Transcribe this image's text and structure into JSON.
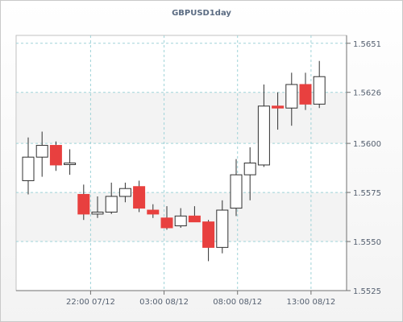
{
  "chart_data": {
    "type": "candlestick",
    "title": "GBPUSD1day",
    "y_axis_position": "right",
    "ylim": [
      1.5525,
      1.5655
    ],
    "yticks": [
      {
        "value": 1.5525,
        "label": "1.5525"
      },
      {
        "value": 1.555,
        "label": "1.5550"
      },
      {
        "value": 1.5575,
        "label": "1.5575"
      },
      {
        "value": 1.56,
        "label": "1.5600"
      },
      {
        "value": 1.5626,
        "label": "1.5626"
      },
      {
        "value": 1.5651,
        "label": "1.5651"
      }
    ],
    "xticks": [
      {
        "index": 4.5,
        "label": "22:00 07/12"
      },
      {
        "index": 9.8,
        "label": "03:00 08/12"
      },
      {
        "index": 15.1,
        "label": "08:00 08/12"
      },
      {
        "index": 20.4,
        "label": "13:00 08/12"
      }
    ],
    "grid": true,
    "colors": {
      "bullish": "#ffffff",
      "bearish": "#e8403f",
      "outline": "#303030",
      "grid": "#9fd3d8"
    },
    "candles": [
      {
        "open": 1.5581,
        "high": 1.5603,
        "low": 1.5574,
        "close": 1.5593
      },
      {
        "open": 1.5593,
        "high": 1.5606,
        "low": 1.5583,
        "close": 1.5599
      },
      {
        "open": 1.5599,
        "high": 1.5601,
        "low": 1.5586,
        "close": 1.5589
      },
      {
        "open": 1.559,
        "high": 1.5597,
        "low": 1.5584,
        "close": 1.559
      },
      {
        "open": 1.5574,
        "high": 1.5579,
        "low": 1.5561,
        "close": 1.5564
      },
      {
        "open": 1.5564,
        "high": 1.5573,
        "low": 1.5562,
        "close": 1.5565
      },
      {
        "open": 1.5565,
        "high": 1.558,
        "low": 1.5564,
        "close": 1.5573
      },
      {
        "open": 1.5573,
        "high": 1.558,
        "low": 1.557,
        "close": 1.5577
      },
      {
        "open": 1.5578,
        "high": 1.5581,
        "low": 1.5565,
        "close": 1.5567
      },
      {
        "open": 1.5566,
        "high": 1.5569,
        "low": 1.5562,
        "close": 1.5564
      },
      {
        "open": 1.5562,
        "high": 1.5568,
        "low": 1.5556,
        "close": 1.5557
      },
      {
        "open": 1.5558,
        "high": 1.5567,
        "low": 1.5557,
        "close": 1.5563
      },
      {
        "open": 1.5563,
        "high": 1.5568,
        "low": 1.556,
        "close": 1.556
      },
      {
        "open": 1.556,
        "high": 1.5561,
        "low": 1.554,
        "close": 1.5547
      },
      {
        "open": 1.5547,
        "high": 1.5571,
        "low": 1.5544,
        "close": 1.5566
      },
      {
        "open": 1.5567,
        "high": 1.5592,
        "low": 1.5563,
        "close": 1.5584
      },
      {
        "open": 1.5584,
        "high": 1.5598,
        "low": 1.5571,
        "close": 1.559
      },
      {
        "open": 1.5589,
        "high": 1.563,
        "low": 1.5588,
        "close": 1.5619
      },
      {
        "open": 1.5619,
        "high": 1.5626,
        "low": 1.5607,
        "close": 1.5618
      },
      {
        "open": 1.5618,
        "high": 1.5636,
        "low": 1.5609,
        "close": 1.563
      },
      {
        "open": 1.563,
        "high": 1.5636,
        "low": 1.5617,
        "close": 1.562
      },
      {
        "open": 1.562,
        "high": 1.5642,
        "low": 1.5618,
        "close": 1.5634
      }
    ]
  }
}
